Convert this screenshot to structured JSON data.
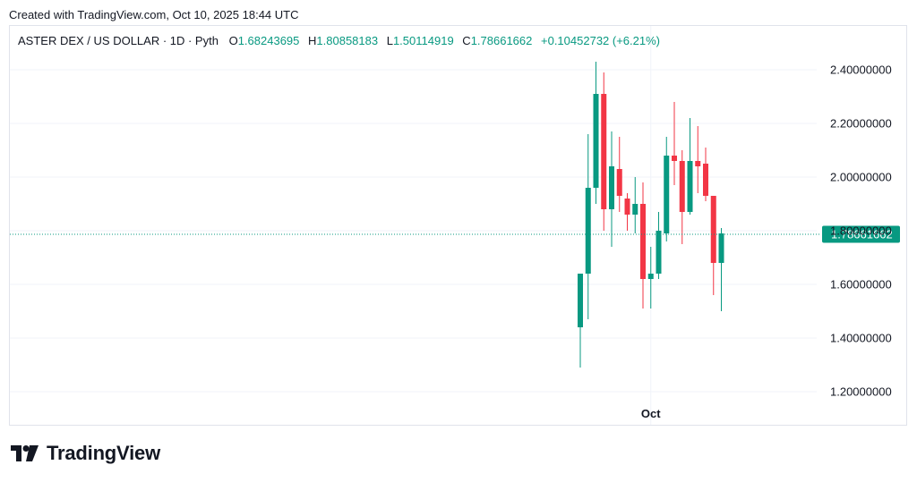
{
  "header": {
    "created_text": "Created with TradingView.com, Oct 10, 2025 18:44 UTC"
  },
  "legend": {
    "symbol": "ASTER DEX / US DOLLAR · 1D · Pyth",
    "o_label": "O",
    "o_value": "1.68243695",
    "h_label": "H",
    "h_value": "1.80858183",
    "l_label": "L",
    "l_value": "1.50114919",
    "c_label": "C",
    "c_value": "1.78661662",
    "change": "+0.10452732 (+6.21%)"
  },
  "footer": {
    "brand": "TradingView"
  },
  "colors": {
    "up": "#089981",
    "down": "#f23645",
    "grid": "#f0f3fa",
    "text": "#131722"
  },
  "chart_data": {
    "type": "candlestick",
    "ylim": [
      1.15,
      2.55
    ],
    "y_ticks": [
      "1.20000000",
      "1.40000000",
      "1.60000000",
      "1.80000000",
      "2.00000000",
      "2.20000000",
      "2.40000000"
    ],
    "x_tick_labels": [
      {
        "label": "Oct",
        "at_index": 9
      }
    ],
    "last_price": "1.78661662",
    "candles": [
      {
        "o": 1.44,
        "h": 1.64,
        "l": 1.29,
        "c": 1.64
      },
      {
        "o": 1.64,
        "h": 2.16,
        "l": 1.47,
        "c": 1.96
      },
      {
        "o": 1.96,
        "h": 2.43,
        "l": 1.9,
        "c": 2.31
      },
      {
        "o": 2.31,
        "h": 2.39,
        "l": 1.8,
        "c": 1.88
      },
      {
        "o": 1.88,
        "h": 2.17,
        "l": 1.74,
        "c": 2.04
      },
      {
        "o": 2.03,
        "h": 2.15,
        "l": 1.87,
        "c": 1.93
      },
      {
        "o": 1.92,
        "h": 1.94,
        "l": 1.8,
        "c": 1.86
      },
      {
        "o": 1.86,
        "h": 2.0,
        "l": 1.79,
        "c": 1.9
      },
      {
        "o": 1.9,
        "h": 1.98,
        "l": 1.51,
        "c": 1.62
      },
      {
        "o": 1.62,
        "h": 1.74,
        "l": 1.51,
        "c": 1.64
      },
      {
        "o": 1.64,
        "h": 1.87,
        "l": 1.62,
        "c": 1.8
      },
      {
        "o": 1.79,
        "h": 2.15,
        "l": 1.76,
        "c": 2.08
      },
      {
        "o": 2.08,
        "h": 2.28,
        "l": 1.97,
        "c": 2.06
      },
      {
        "o": 2.06,
        "h": 2.1,
        "l": 1.75,
        "c": 1.87
      },
      {
        "o": 1.87,
        "h": 2.22,
        "l": 1.86,
        "c": 2.06
      },
      {
        "o": 2.06,
        "h": 2.19,
        "l": 1.94,
        "c": 2.04
      },
      {
        "o": 2.05,
        "h": 2.11,
        "l": 1.91,
        "c": 1.93
      },
      {
        "o": 1.93,
        "h": 1.93,
        "l": 1.56,
        "c": 1.68
      },
      {
        "o": 1.68,
        "h": 1.81,
        "l": 1.5,
        "c": 1.79
      }
    ]
  }
}
